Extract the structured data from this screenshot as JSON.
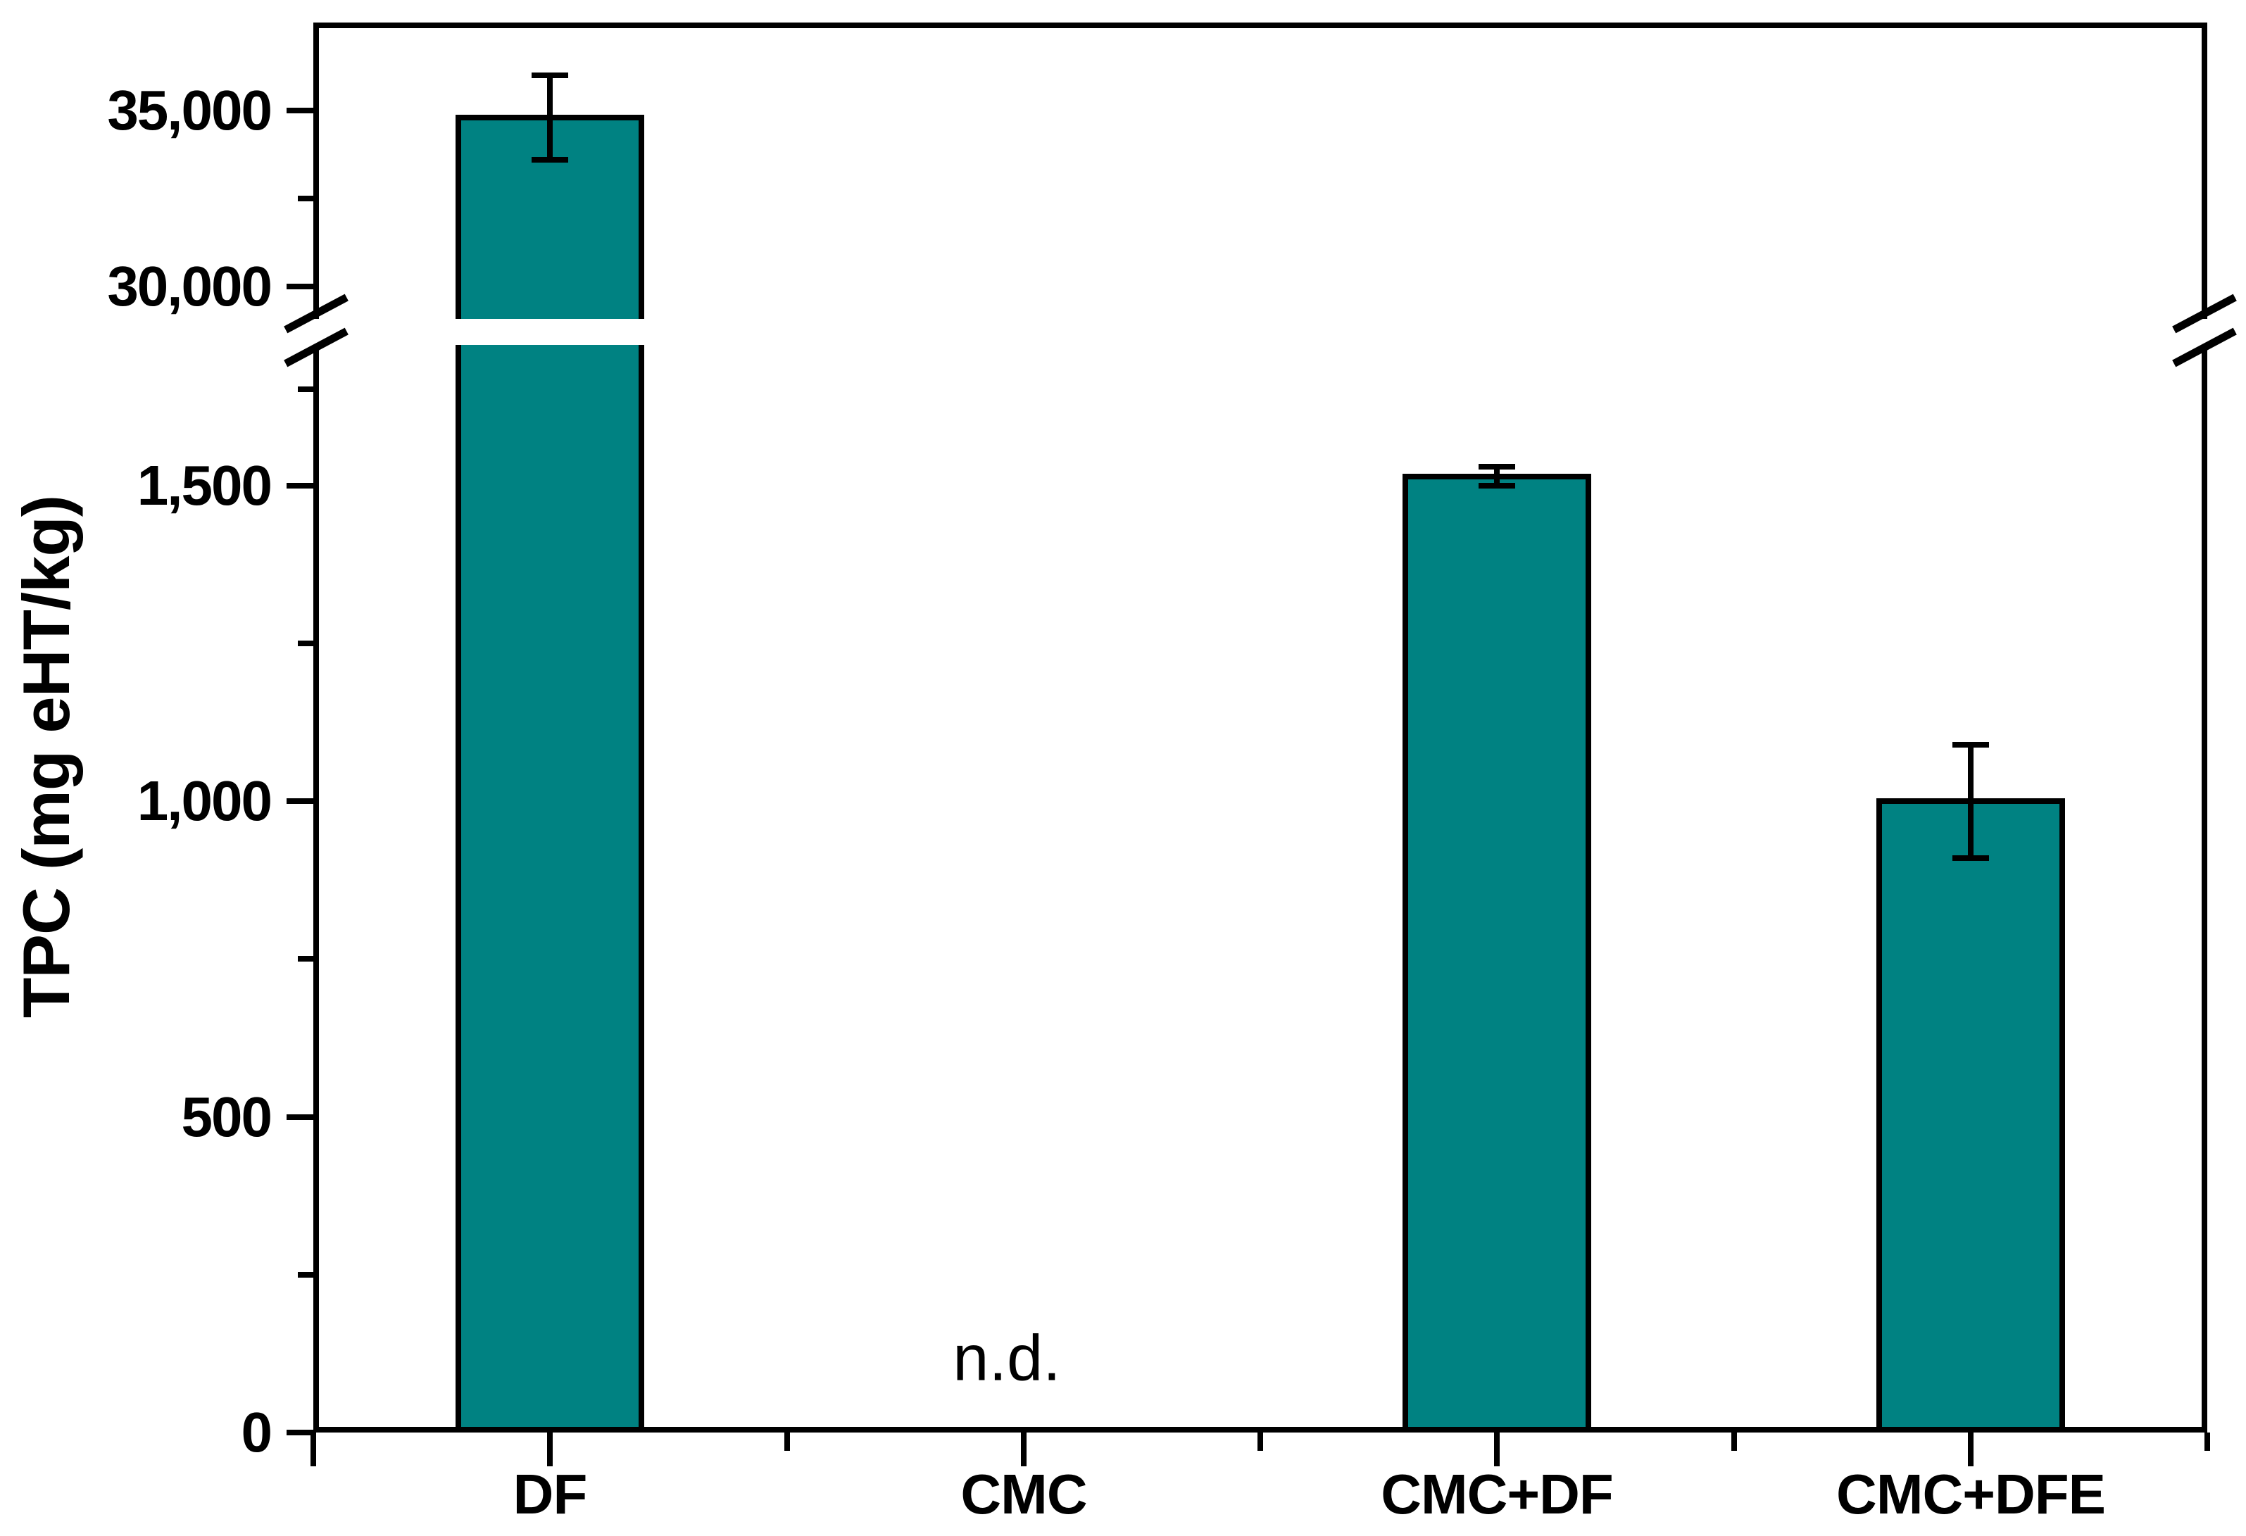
{
  "figure": {
    "background": "#ffffff"
  },
  "chart_data": {
    "type": "bar",
    "title": "",
    "xlabel": "",
    "ylabel": "TPC (mg eHT/kg)",
    "categories": [
      "DF",
      "CMC",
      "CMC+DF",
      "CMC+DFE"
    ],
    "series": [
      {
        "name": "TPC",
        "values": [
          34800,
          null,
          1515,
          1000
        ],
        "errors": [
          1200,
          null,
          15,
          90
        ]
      }
    ],
    "annotations": [
      {
        "category": "CMC",
        "text": "n.d."
      }
    ],
    "bar_fill_color": "#008282",
    "bar_outline_color": "#000000",
    "error_bar_color": "#000000",
    "axis_color": "#000000",
    "axis_break": {
      "enabled": true,
      "lower_segment_range": [
        0,
        1720
      ],
      "upper_segment_range": [
        29100,
        37500
      ]
    },
    "y_ticks": {
      "upper_major": [
        {
          "value": 35000,
          "label": "35,000"
        },
        {
          "value": 30000,
          "label": "30,000"
        }
      ],
      "lower_major": [
        {
          "value": 1500,
          "label": "1,500"
        },
        {
          "value": 1000,
          "label": "1,000"
        },
        {
          "value": 500,
          "label": "500"
        },
        {
          "value": 0,
          "label": "0"
        }
      ],
      "upper_minor": [
        32500
      ],
      "lower_minor": [
        1250,
        750,
        250
      ]
    },
    "grid": false,
    "legend": false
  }
}
